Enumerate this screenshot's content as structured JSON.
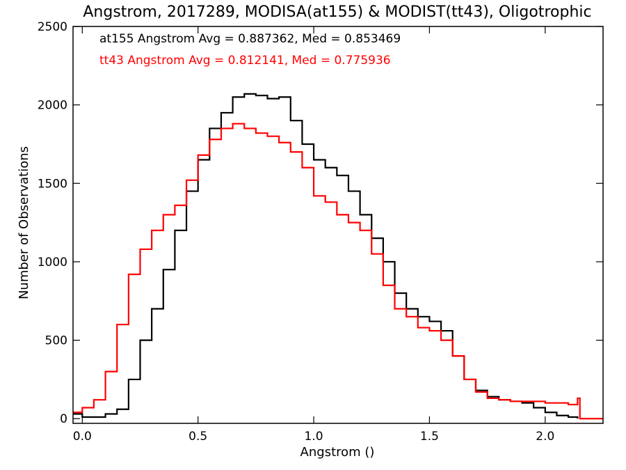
{
  "chart_data": {
    "type": "line",
    "title": "Angstrom, 2017289, MODISA(at155) & MODIST(tt43), Oligotrophic",
    "xlabel": "Angstrom ()",
    "ylabel": "Number of Observations",
    "xlim": [
      -0.04,
      2.25
    ],
    "ylim": [
      -30,
      2500
    ],
    "x_ticks": [
      "0.0",
      "0.5",
      "1.0",
      "1.5",
      "2.0"
    ],
    "x_tick_values": [
      0.0,
      0.5,
      1.0,
      1.5,
      2.0
    ],
    "y_ticks": [
      "0",
      "500",
      "1000",
      "1500",
      "2000",
      "2500"
    ],
    "y_tick_values": [
      0,
      500,
      1000,
      1500,
      2000,
      2500
    ],
    "annotations": [
      {
        "text": "at155 Angstrom Avg = 0.887362, Med = 0.853469",
        "color": "#000000"
      },
      {
        "text": "tt43 Angstrom Avg = 0.812141, Med = 0.775936",
        "color": "#ff0000"
      }
    ],
    "series": [
      {
        "color": "#000000",
        "x": [
          -0.04,
          0.0,
          0.05,
          0.1,
          0.15,
          0.2,
          0.25,
          0.3,
          0.35,
          0.4,
          0.45,
          0.5,
          0.55,
          0.6,
          0.65,
          0.7,
          0.75,
          0.8,
          0.85,
          0.9,
          0.95,
          1.0,
          1.05,
          1.1,
          1.15,
          1.2,
          1.25,
          1.3,
          1.35,
          1.4,
          1.45,
          1.5,
          1.55,
          1.6,
          1.65,
          1.7,
          1.75,
          1.8,
          1.85,
          1.9,
          1.95,
          2.0,
          2.05,
          2.1,
          2.14
        ],
        "y": [
          30,
          10,
          10,
          30,
          60,
          250,
          500,
          700,
          950,
          1200,
          1450,
          1650,
          1850,
          1950,
          2050,
          2070,
          2060,
          2040,
          2050,
          1900,
          1750,
          1650,
          1600,
          1550,
          1450,
          1300,
          1150,
          1000,
          800,
          700,
          650,
          620,
          560,
          400,
          250,
          180,
          140,
          120,
          110,
          100,
          70,
          40,
          20,
          10,
          0
        ]
      },
      {
        "color": "#ff0000",
        "x": [
          -0.04,
          0.0,
          0.05,
          0.1,
          0.15,
          0.2,
          0.25,
          0.3,
          0.35,
          0.4,
          0.45,
          0.5,
          0.55,
          0.6,
          0.65,
          0.7,
          0.75,
          0.8,
          0.85,
          0.9,
          0.95,
          1.0,
          1.05,
          1.1,
          1.15,
          1.2,
          1.25,
          1.3,
          1.35,
          1.4,
          1.45,
          1.5,
          1.55,
          1.6,
          1.65,
          1.7,
          1.75,
          1.8,
          1.85,
          1.9,
          1.95,
          2.0,
          2.05,
          2.1,
          2.14,
          2.15,
          2.25
        ],
        "y": [
          40,
          70,
          120,
          300,
          600,
          920,
          1080,
          1200,
          1300,
          1360,
          1520,
          1680,
          1780,
          1850,
          1880,
          1850,
          1820,
          1800,
          1760,
          1700,
          1600,
          1420,
          1380,
          1300,
          1250,
          1200,
          1050,
          850,
          700,
          650,
          580,
          560,
          500,
          400,
          250,
          170,
          130,
          120,
          110,
          110,
          110,
          100,
          100,
          90,
          130,
          0,
          0
        ]
      }
    ]
  }
}
